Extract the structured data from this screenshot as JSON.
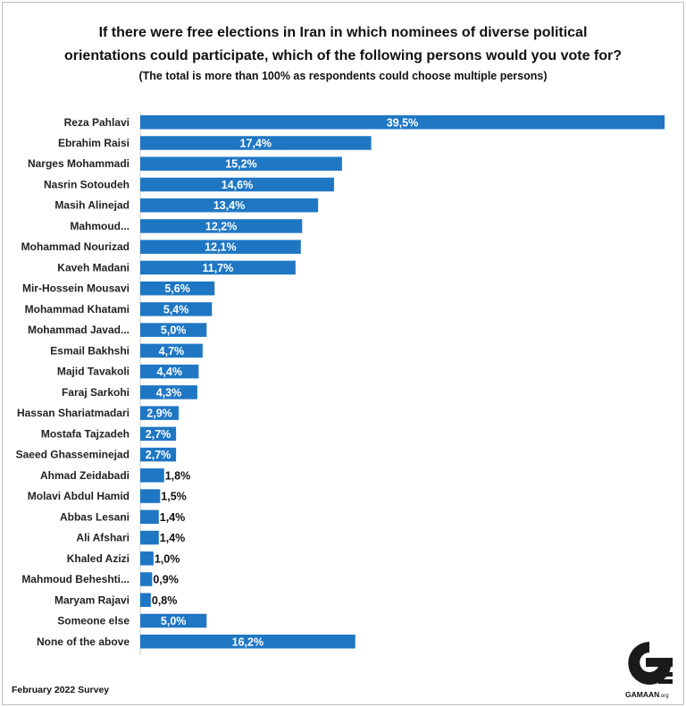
{
  "title_line1": "If there were free elections in Iran in which nominees of diverse political",
  "title_line2": "orientations could participate, which of the following persons would you vote for?",
  "subtitle": "(The total is more than 100% as respondents could choose multiple persons)",
  "footer": "February 2022 Survey",
  "logo": {
    "text": "GAMAAN",
    "suffix": ".org"
  },
  "colors": {
    "bar": "#1f77c4",
    "label_inside": "#ffffff",
    "label_outside": "#111111"
  },
  "chart_data": {
    "type": "bar",
    "orientation": "horizontal",
    "categories": [
      "Reza Pahlavi",
      "Ebrahim Raisi",
      "Narges Mohammadi",
      "Nasrin Sotoudeh",
      "Masih Alinejad",
      "Mahmoud...",
      "Mohammad Nourizad",
      "Kaveh Madani",
      "Mir-Hossein Mousavi",
      "Mohammad Khatami",
      "Mohammad Javad...",
      "Esmail Bakhshi",
      "Majid Tavakoli",
      "Faraj Sarkohi",
      "Hassan Shariatmadari",
      "Mostafa Tajzadeh",
      "Saeed Ghasseminejad",
      "Ahmad Zeidabadi",
      "Molavi Abdul Hamid",
      "Abbas Lesani",
      "Ali Afshari",
      "Khaled Azizi",
      "Mahmoud Beheshti...",
      "Maryam Rajavi",
      "Someone else",
      "None of the above"
    ],
    "values": [
      39.5,
      17.4,
      15.2,
      14.6,
      13.4,
      12.2,
      12.1,
      11.7,
      5.6,
      5.4,
      5.0,
      4.7,
      4.4,
      4.3,
      2.9,
      2.7,
      2.7,
      1.8,
      1.5,
      1.4,
      1.4,
      1.0,
      0.9,
      0.8,
      5.0,
      16.2
    ],
    "labels": [
      "39,5%",
      "17,4%",
      "15,2%",
      "14,6%",
      "13,4%",
      "12,2%",
      "12,1%",
      "11,7%",
      "5,6%",
      "5,4%",
      "5,0%",
      "4,7%",
      "4,4%",
      "4,3%",
      "2,9%",
      "2,7%",
      "2,7%",
      "1,8%",
      "1,5%",
      "1,4%",
      "1,4%",
      "1,0%",
      "0,9%",
      "0,8%",
      "5,0%",
      "16,2%"
    ],
    "xlim": [
      0,
      39.5
    ],
    "grid": false,
    "legend": "none"
  }
}
